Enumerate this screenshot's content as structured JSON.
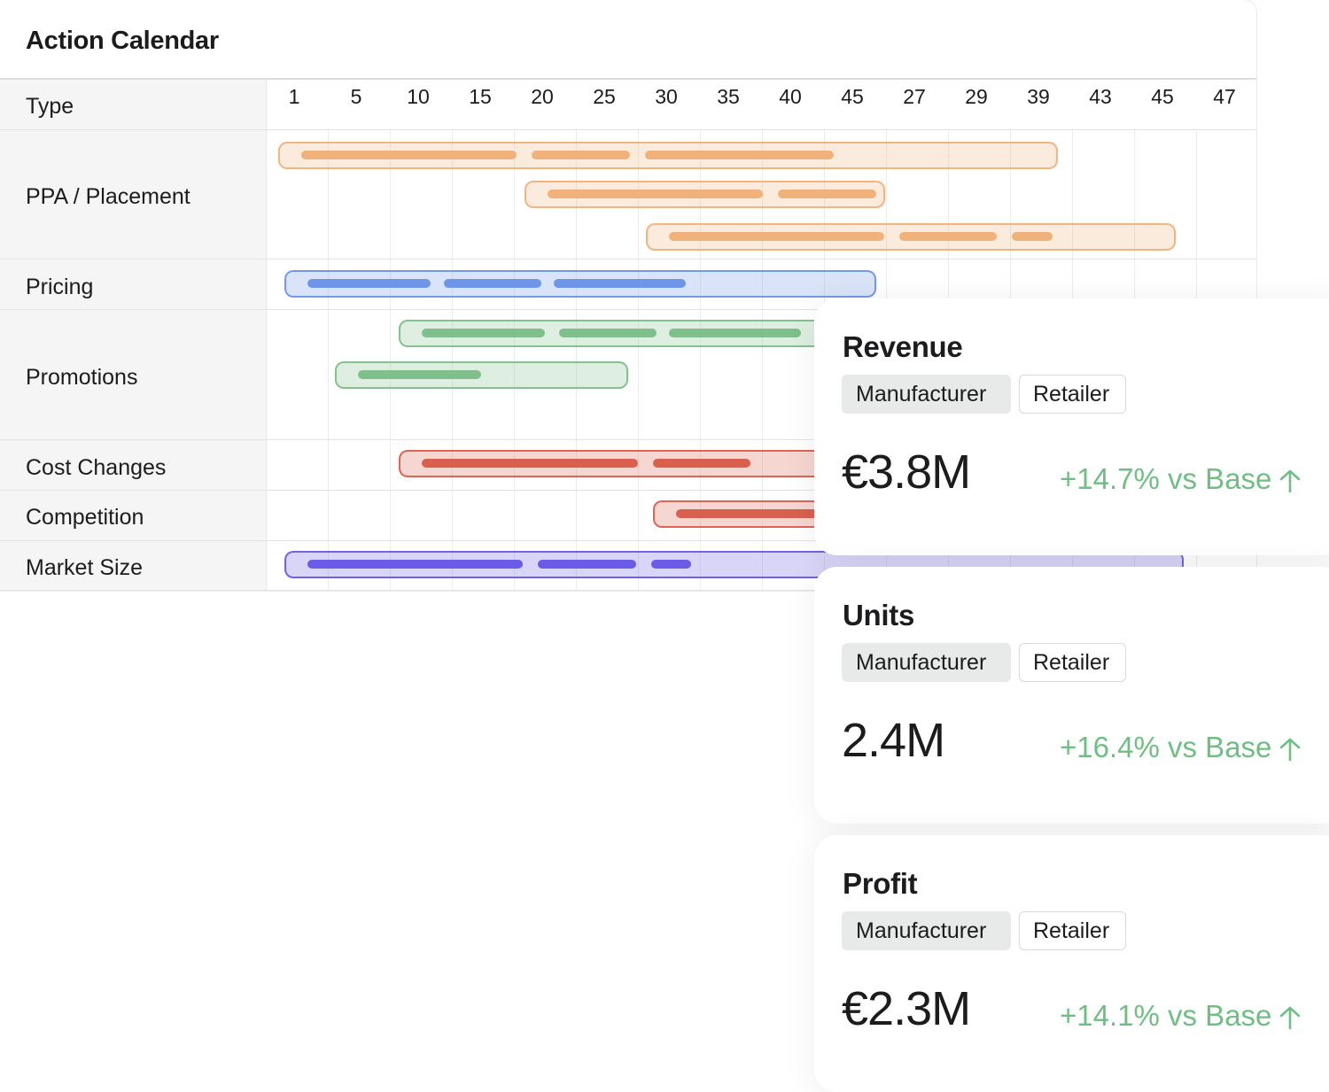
{
  "calendar": {
    "title": "Action Calendar",
    "type_header": "Type",
    "ticks": [
      "1",
      "5",
      "10",
      "15",
      "20",
      "25",
      "30",
      "35",
      "40",
      "45",
      "27",
      "29",
      "39",
      "43",
      "45",
      "47"
    ],
    "rows": [
      {
        "label": "PPA / Placement"
      },
      {
        "label": "Pricing"
      },
      {
        "label": "Promotions"
      },
      {
        "label": "Cost Changes"
      },
      {
        "label": "Competition"
      },
      {
        "label": "Market Size"
      }
    ]
  },
  "colors": {
    "ppa": "#f0b27a",
    "pricing": "#6e96e8",
    "promotions": "#7fbf8a",
    "cost": "#d9604f",
    "competition": "#d9604f",
    "market": "#6b5ce8",
    "positive": "#6fbf83"
  },
  "metrics": [
    {
      "title": "Revenue",
      "tag_active": "Manufacturer",
      "tag_inactive": "Retailer",
      "value": "€3.8M",
      "delta": "+14.7% vs Base",
      "icon": "arrow-up-icon"
    },
    {
      "title": "Units",
      "tag_active": "Manufacturer",
      "tag_inactive": "Retailer",
      "value": "2.4M",
      "delta": "+16.4% vs Base",
      "icon": "arrow-up-icon"
    },
    {
      "title": "Profit",
      "tag_active": "Manufacturer",
      "tag_inactive": "Retailer",
      "value": "€2.3M",
      "delta": "+14.1% vs Base",
      "icon": "arrow-up-icon"
    }
  ]
}
